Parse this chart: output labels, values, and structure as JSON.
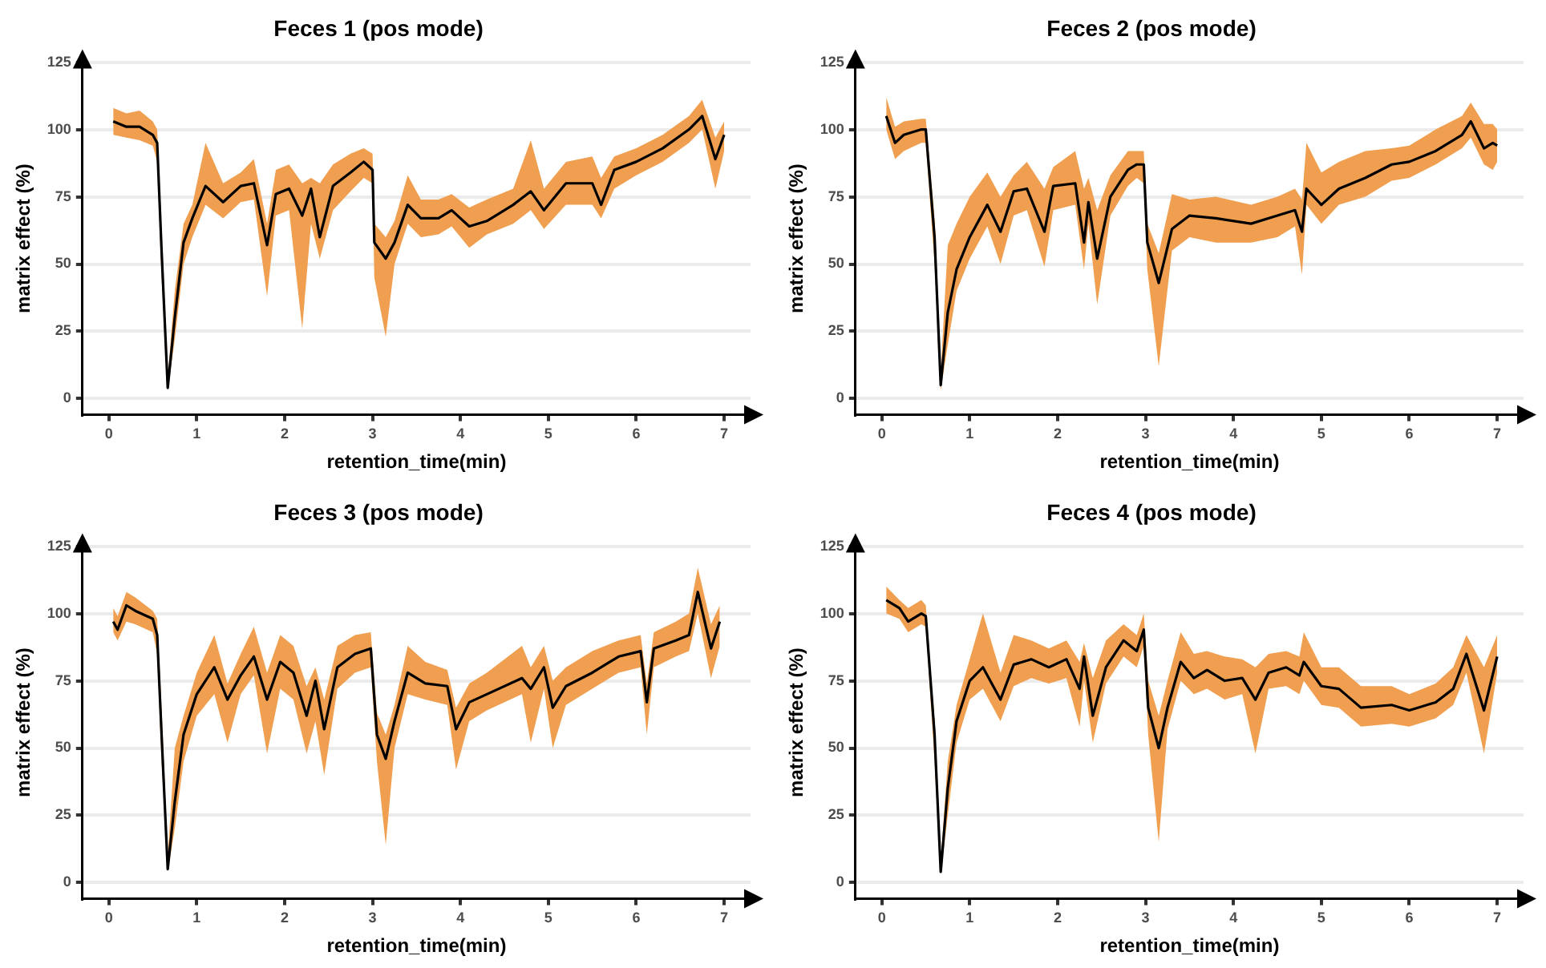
{
  "chart_data": [
    {
      "type": "line",
      "title": "Feces 1 (pos mode)",
      "xlabel": "retention_time(min)",
      "ylabel": "matrix effect (%)",
      "xlim": [
        -0.3,
        7.3
      ],
      "xticks": [
        0,
        1,
        2,
        3,
        4,
        5,
        6,
        7
      ],
      "ylim": [
        -6,
        125
      ],
      "yticks": [
        0,
        25,
        50,
        75,
        100,
        125
      ],
      "grid": "y",
      "legend": false,
      "series": [
        {
          "color": "#000000",
          "x": [
            0.05,
            0.2,
            0.35,
            0.5,
            0.55,
            0.6,
            0.67,
            0.75,
            0.85,
            0.95,
            1.1,
            1.3,
            1.5,
            1.65,
            1.8,
            1.9,
            2.05,
            2.2,
            2.3,
            2.4,
            2.55,
            2.75,
            2.9,
            3.0,
            3.02,
            3.15,
            3.25,
            3.4,
            3.55,
            3.75,
            3.9,
            4.1,
            4.3,
            4.6,
            4.8,
            4.95,
            5.2,
            5.5,
            5.6,
            5.75,
            6.0,
            6.3,
            6.6,
            6.75,
            6.9,
            7.0
          ],
          "values": [
            103,
            101,
            101,
            98,
            95,
            55,
            4,
            30,
            58,
            67,
            79,
            73,
            79,
            80,
            57,
            76,
            78,
            68,
            78,
            60,
            79,
            84,
            88,
            85,
            58,
            52,
            58,
            72,
            67,
            67,
            70,
            64,
            66,
            72,
            77,
            70,
            80,
            80,
            72,
            85,
            88,
            93,
            100,
            105,
            89,
            98
          ],
          "lower": [
            98,
            97,
            96,
            94,
            88,
            45,
            3,
            22,
            50,
            60,
            72,
            67,
            73,
            74,
            38,
            68,
            70,
            26,
            65,
            52,
            70,
            77,
            82,
            80,
            45,
            23,
            50,
            65,
            60,
            61,
            64,
            56,
            61,
            65,
            70,
            63,
            72,
            72,
            67,
            78,
            83,
            88,
            95,
            100,
            78,
            92
          ],
          "upper": [
            108,
            106,
            107,
            103,
            100,
            62,
            8,
            40,
            65,
            72,
            95,
            80,
            84,
            89,
            65,
            85,
            87,
            80,
            82,
            80,
            87,
            91,
            93,
            91,
            65,
            60,
            66,
            83,
            74,
            74,
            76,
            71,
            74,
            78,
            96,
            78,
            88,
            90,
            82,
            90,
            93,
            98,
            105,
            111,
            97,
            103
          ]
        }
      ]
    },
    {
      "type": "line",
      "title": "Feces 2 (pos mode)",
      "xlabel": "retention_time(min)",
      "ylabel": "matrix effect (%)",
      "xlim": [
        -0.3,
        7.3
      ],
      "xticks": [
        0,
        1,
        2,
        3,
        4,
        5,
        6,
        7
      ],
      "ylim": [
        -6,
        125
      ],
      "yticks": [
        0,
        25,
        50,
        75,
        100,
        125
      ],
      "grid": "y",
      "legend": false,
      "series": [
        {
          "color": "#000000",
          "x": [
            0.05,
            0.15,
            0.25,
            0.45,
            0.5,
            0.6,
            0.67,
            0.75,
            0.85,
            1.0,
            1.2,
            1.35,
            1.5,
            1.65,
            1.85,
            1.95,
            2.2,
            2.3,
            2.35,
            2.45,
            2.6,
            2.8,
            2.9,
            2.98,
            3.02,
            3.15,
            3.3,
            3.5,
            3.8,
            4.2,
            4.5,
            4.7,
            4.78,
            4.83,
            5.0,
            5.2,
            5.5,
            5.8,
            6.0,
            6.3,
            6.6,
            6.7,
            6.85,
            6.95,
            7.0
          ],
          "values": [
            105,
            95,
            98,
            100,
            100,
            60,
            5,
            32,
            48,
            60,
            72,
            62,
            77,
            78,
            62,
            79,
            80,
            58,
            73,
            52,
            75,
            85,
            87,
            87,
            58,
            43,
            63,
            68,
            67,
            65,
            68,
            70,
            62,
            78,
            72,
            78,
            82,
            87,
            88,
            92,
            98,
            103,
            93,
            95,
            94
          ],
          "lower": [
            100,
            89,
            92,
            95,
            95,
            50,
            3,
            20,
            40,
            52,
            64,
            50,
            68,
            70,
            49,
            70,
            72,
            48,
            65,
            35,
            68,
            79,
            82,
            80,
            48,
            12,
            55,
            60,
            58,
            58,
            60,
            64,
            46,
            72,
            65,
            72,
            75,
            81,
            82,
            87,
            93,
            97,
            87,
            85,
            88
          ],
          "upper": [
            112,
            101,
            103,
            104,
            104,
            67,
            10,
            57,
            65,
            75,
            84,
            75,
            83,
            88,
            78,
            86,
            92,
            78,
            82,
            70,
            83,
            92,
            92,
            92,
            65,
            54,
            76,
            74,
            75,
            72,
            75,
            78,
            74,
            95,
            84,
            88,
            92,
            93,
            94,
            100,
            105,
            110,
            102,
            102,
            100
          ]
        }
      ]
    },
    {
      "type": "line",
      "title": "Feces 3 (pos mode)",
      "xlabel": "retention_time(min)",
      "ylabel": "matrix effect (%)",
      "xlim": [
        -0.3,
        7.3
      ],
      "xticks": [
        0,
        1,
        2,
        3,
        4,
        5,
        6,
        7
      ],
      "ylim": [
        -6,
        125
      ],
      "yticks": [
        0,
        25,
        50,
        75,
        100,
        125
      ],
      "grid": "y",
      "legend": false,
      "series": [
        {
          "color": "#000000",
          "x": [
            0.05,
            0.1,
            0.2,
            0.3,
            0.5,
            0.55,
            0.6,
            0.67,
            0.75,
            0.85,
            1.0,
            1.2,
            1.35,
            1.5,
            1.65,
            1.8,
            1.95,
            2.1,
            2.25,
            2.35,
            2.45,
            2.6,
            2.8,
            2.98,
            3.05,
            3.15,
            3.25,
            3.4,
            3.6,
            3.85,
            3.95,
            4.1,
            4.3,
            4.7,
            4.8,
            4.95,
            5.05,
            5.2,
            5.5,
            5.8,
            6.05,
            6.12,
            6.2,
            6.45,
            6.6,
            6.7,
            6.85,
            6.95
          ],
          "values": [
            97,
            94,
            103,
            101,
            98,
            92,
            55,
            5,
            30,
            55,
            70,
            80,
            68,
            77,
            84,
            68,
            82,
            78,
            62,
            75,
            57,
            80,
            85,
            87,
            55,
            46,
            60,
            78,
            74,
            73,
            57,
            67,
            70,
            76,
            72,
            80,
            65,
            73,
            78,
            84,
            86,
            67,
            87,
            90,
            92,
            108,
            87,
            97
          ],
          "lower": [
            93,
            90,
            97,
            96,
            93,
            85,
            45,
            4,
            20,
            45,
            62,
            70,
            52,
            70,
            77,
            48,
            72,
            68,
            48,
            60,
            40,
            72,
            78,
            80,
            45,
            14,
            50,
            70,
            68,
            66,
            42,
            60,
            64,
            70,
            52,
            72,
            50,
            66,
            72,
            78,
            80,
            55,
            80,
            84,
            86,
            100,
            76,
            88
          ],
          "upper": [
            102,
            99,
            108,
            106,
            101,
            98,
            65,
            10,
            50,
            62,
            78,
            92,
            74,
            85,
            95,
            78,
            92,
            88,
            73,
            80,
            68,
            88,
            92,
            93,
            63,
            55,
            66,
            88,
            82,
            79,
            65,
            74,
            78,
            88,
            80,
            88,
            75,
            80,
            86,
            90,
            92,
            74,
            93,
            97,
            100,
            117,
            96,
            103
          ]
        }
      ]
    },
    {
      "type": "line",
      "title": "Feces 4 (pos mode)",
      "xlabel": "retention_time(min)",
      "ylabel": "matrix effect (%)",
      "xlim": [
        -0.3,
        7.3
      ],
      "xticks": [
        0,
        1,
        2,
        3,
        4,
        5,
        6,
        7
      ],
      "ylim": [
        -6,
        125
      ],
      "yticks": [
        0,
        25,
        50,
        75,
        100,
        125
      ],
      "grid": "y",
      "legend": false,
      "series": [
        {
          "color": "#000000",
          "x": [
            0.05,
            0.2,
            0.3,
            0.45,
            0.5,
            0.6,
            0.67,
            0.75,
            0.85,
            1.0,
            1.15,
            1.35,
            1.5,
            1.7,
            1.9,
            2.1,
            2.25,
            2.3,
            2.4,
            2.55,
            2.75,
            2.9,
            2.98,
            3.03,
            3.15,
            3.25,
            3.4,
            3.55,
            3.7,
            3.9,
            4.1,
            4.25,
            4.4,
            4.6,
            4.75,
            4.8,
            5.0,
            5.2,
            5.45,
            5.8,
            6.0,
            6.3,
            6.5,
            6.65,
            6.85,
            7.0
          ],
          "values": [
            105,
            102,
            97,
            100,
            99,
            55,
            4,
            35,
            60,
            75,
            80,
            68,
            81,
            83,
            80,
            83,
            72,
            84,
            62,
            80,
            90,
            86,
            94,
            65,
            50,
            65,
            82,
            76,
            79,
            75,
            76,
            68,
            78,
            80,
            77,
            82,
            73,
            72,
            65,
            66,
            64,
            67,
            72,
            85,
            64,
            84
          ],
          "lower": [
            100,
            98,
            93,
            96,
            95,
            45,
            3,
            25,
            52,
            68,
            72,
            60,
            73,
            76,
            74,
            76,
            58,
            75,
            52,
            74,
            84,
            80,
            88,
            55,
            15,
            57,
            75,
            70,
            72,
            68,
            70,
            48,
            72,
            73,
            70,
            75,
            66,
            65,
            58,
            59,
            58,
            61,
            66,
            78,
            48,
            78
          ],
          "upper": [
            110,
            105,
            102,
            105,
            103,
            60,
            8,
            45,
            66,
            83,
            100,
            78,
            92,
            90,
            87,
            90,
            82,
            89,
            76,
            90,
            96,
            92,
            100,
            75,
            62,
            75,
            93,
            85,
            86,
            84,
            83,
            80,
            85,
            86,
            84,
            93,
            80,
            80,
            73,
            73,
            70,
            74,
            80,
            92,
            80,
            92
          ]
        }
      ]
    }
  ]
}
